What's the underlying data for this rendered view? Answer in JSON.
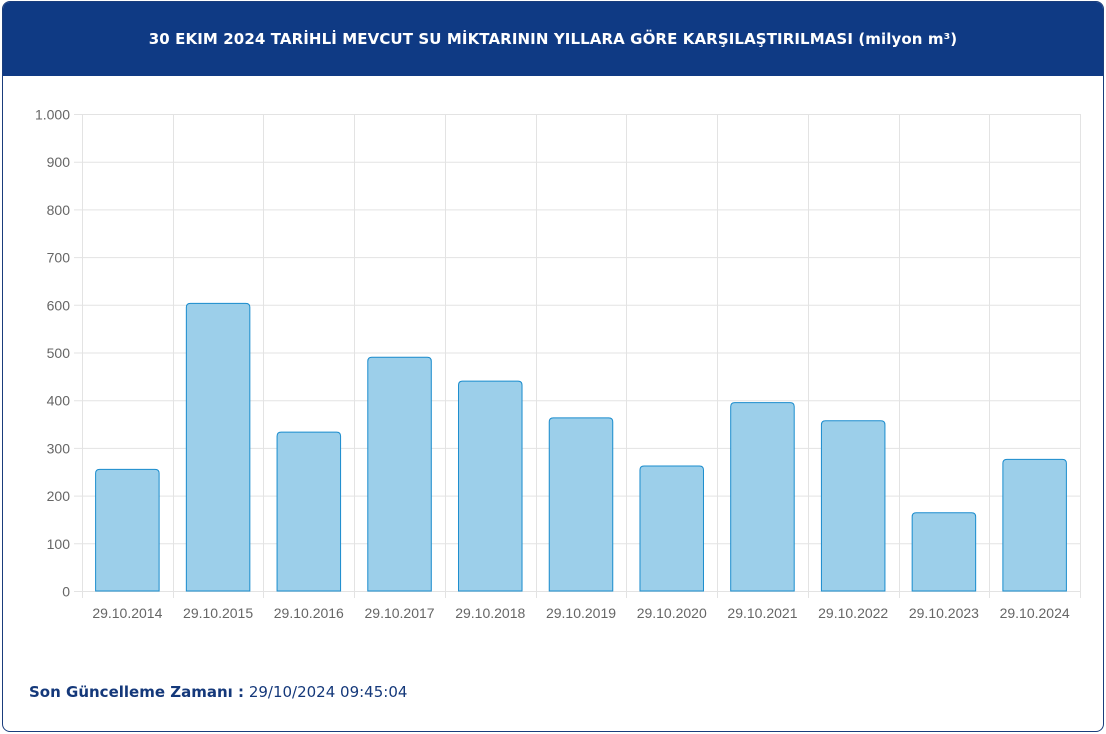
{
  "header": {
    "title": "30 EKIM 2024 TARİHLİ MEVCUT SU MİKTARININ YILLARA GÖRE KARŞILAŞTIRILMASI (milyon m³)"
  },
  "chart_data": {
    "type": "bar",
    "title": "30 EKIM 2024 TARİHLİ MEVCUT SU MİKTARININ YILLARA GÖRE KARŞILAŞTIRILMASI (milyon m³)",
    "categories": [
      "29.10.2014",
      "29.10.2015",
      "29.10.2016",
      "29.10.2017",
      "29.10.2018",
      "29.10.2019",
      "29.10.2020",
      "29.10.2021",
      "29.10.2022",
      "29.10.2023",
      "29.10.2024"
    ],
    "values": [
      255,
      603,
      333,
      490,
      440,
      363,
      262,
      395,
      357,
      164,
      276
    ],
    "ylim": [
      0,
      1000
    ],
    "yticks": [
      0,
      100,
      200,
      300,
      400,
      500,
      600,
      700,
      800,
      900,
      1000
    ],
    "ytick_labels": [
      "0",
      "100",
      "200",
      "300",
      "400",
      "500",
      "600",
      "700",
      "800",
      "900",
      "1.000"
    ],
    "xlabel": "",
    "ylabel": "",
    "grid": true,
    "bar_fill": "#9ccfea",
    "bar_stroke": "#1a8ccd"
  },
  "footer": {
    "label": "Son Güncelleme Zamanı :",
    "value": "29/10/2024 09:45:04"
  },
  "colors": {
    "header_bg": "#0f3a84",
    "grid": "#e3e3e3",
    "axis_text": "#666666"
  }
}
